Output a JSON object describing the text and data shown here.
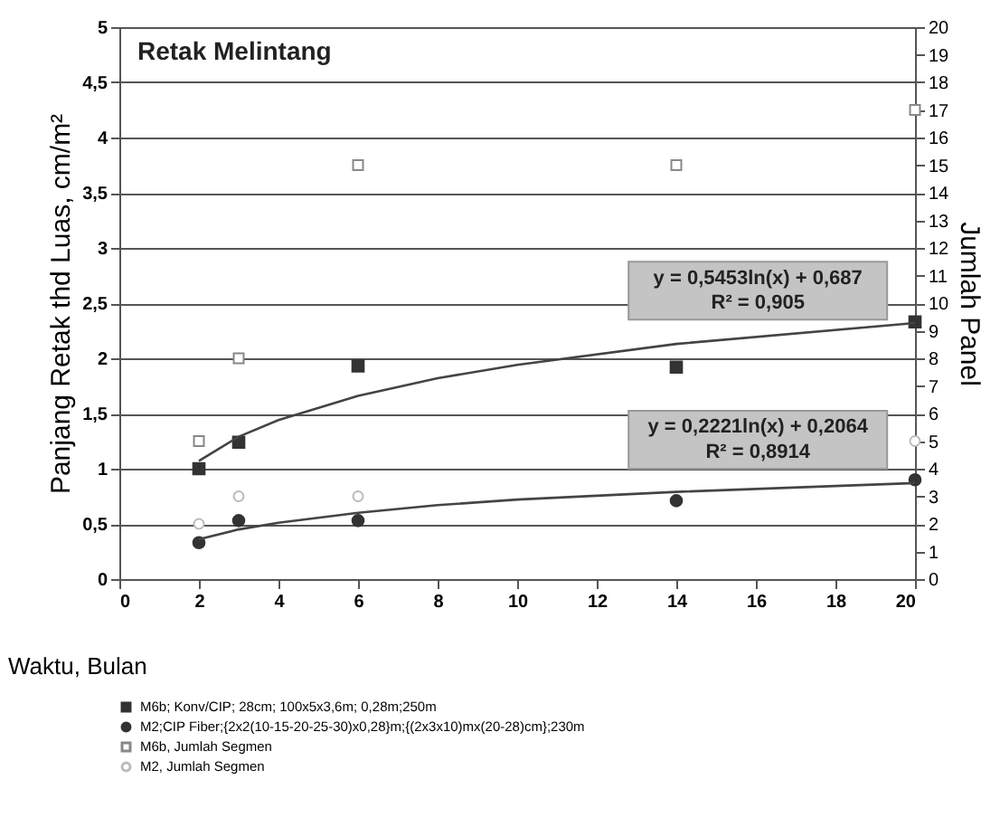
{
  "chart_data": {
    "type": "scatter",
    "title": "Retak Melintang",
    "xlabel": "Waktu, Bulan",
    "ylabel": "Panjang Retak thd Luas, cm/m²",
    "y2label": "Jumlah Panel",
    "xlim": [
      0,
      20
    ],
    "xticks": [
      0,
      2,
      4,
      6,
      8,
      10,
      12,
      14,
      16,
      18,
      20
    ],
    "ylim": [
      0,
      5
    ],
    "yticks": [
      0,
      {
        "value": 0.5,
        "label": "0,5"
      },
      1,
      {
        "value": 1.5,
        "label": "1,5"
      },
      2,
      {
        "value": 2.5,
        "label": "2,5"
      },
      3,
      {
        "value": 3.5,
        "label": "3,5"
      },
      4,
      {
        "value": 4.5,
        "label": "4,5"
      },
      5
    ],
    "y2lim": [
      0,
      20
    ],
    "y2ticks": [
      0,
      1,
      2,
      3,
      4,
      5,
      6,
      7,
      8,
      9,
      10,
      11,
      12,
      13,
      14,
      15,
      16,
      17,
      18,
      19,
      20
    ],
    "grid": "y",
    "legend": "bottom",
    "series": [
      {
        "name": "M6b; Konv/CIP; 28cm; 100x5x3,6m; 0,28m;250m",
        "color": "#333333",
        "marker": "square",
        "x": [
          2,
          3,
          6,
          14,
          20
        ],
        "values": [
          1.0,
          1.24,
          1.93,
          1.92,
          2.33
        ]
      },
      {
        "name": "M2;CIP Fiber;{2x2(10-15-20-25-30)x0,28}m;{(2x3x10)mx(20-28)cm};230m",
        "color": "#333333",
        "marker": "circle",
        "x": [
          2,
          3,
          6,
          14,
          20
        ],
        "values": [
          0.33,
          0.53,
          0.53,
          0.71,
          0.9
        ]
      },
      {
        "name": "M6b, Jumlah Segmen",
        "color": "#888888",
        "marker": "square",
        "axis": "y2",
        "x": [
          2,
          3,
          6,
          14,
          20
        ],
        "values": [
          5,
          8,
          15,
          15,
          17
        ]
      },
      {
        "name": "M2, Jumlah Segmen",
        "color": "#bbbbbb",
        "marker": "circle",
        "axis": "y2",
        "x": [
          2,
          3,
          6,
          14,
          20
        ],
        "values": [
          2,
          3,
          3,
          null,
          5
        ]
      },
      {
        "type": "line",
        "color": "#444444",
        "x": [
          2,
          3,
          4,
          6,
          8,
          10,
          14,
          20
        ],
        "values": [
          1.07,
          1.29,
          1.44,
          1.66,
          1.82,
          1.94,
          2.13,
          2.32
        ]
      },
      {
        "type": "line",
        "color": "#444444",
        "x": [
          2,
          3,
          4,
          6,
          8,
          10,
          14,
          20
        ],
        "values": [
          0.36,
          0.45,
          0.51,
          0.6,
          0.67,
          0.72,
          0.79,
          0.87
        ]
      }
    ],
    "annotations": [
      "y = 0,5453ln(x) + 0,687",
      "R² = 0,905",
      "y = 0,2221ln(x) + 0,2064",
      "R² = 0,8914"
    ]
  }
}
